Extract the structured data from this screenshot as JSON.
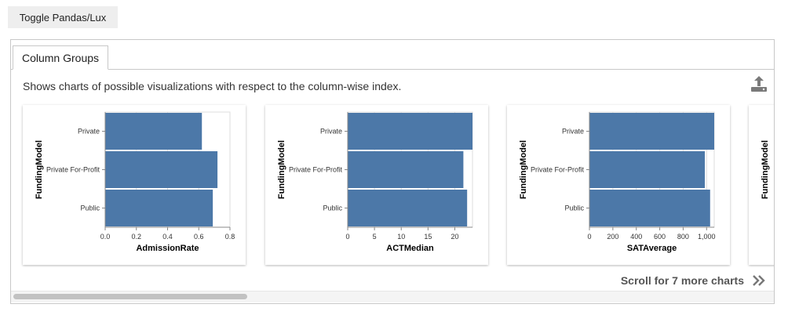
{
  "toggle_label": "Toggle Pandas/Lux",
  "tab_label": "Column Groups",
  "description": "Shows charts of possible visualizations with respect to the column-wise index.",
  "icons": {
    "export": "export-icon",
    "scroll": "double-chevron-right-icon"
  },
  "scroll_label": "Scroll for 7 more charts",
  "colors": {
    "bar": "#4c78a8",
    "axis": "#888888",
    "grid": "#dddddd",
    "card_border": "#d6d6d6"
  },
  "chart_data": [
    {
      "type": "bar",
      "orientation": "horizontal",
      "categories": [
        "Private",
        "Private For-Profit",
        "Public"
      ],
      "values": [
        0.62,
        0.72,
        0.69
      ],
      "xlabel": "AdmissionRate",
      "ylabel": "FundingModel",
      "xlim": [
        0,
        0.8
      ],
      "ticks": [
        0,
        0.2,
        0.4,
        0.6,
        0.8
      ],
      "tick_labels": [
        "0.0",
        "0.2",
        "0.4",
        "0.6",
        "0.8"
      ],
      "grid": true
    },
    {
      "type": "bar",
      "orientation": "horizontal",
      "categories": [
        "Private",
        "Private For-Profit",
        "Public"
      ],
      "values": [
        23.3,
        21.6,
        22.3
      ],
      "xlabel": "ACTMedian",
      "ylabel": "FundingModel",
      "xlim": [
        0,
        23.3
      ],
      "ticks": [
        0,
        5,
        10,
        15,
        20
      ],
      "tick_labels": [
        "0",
        "5",
        "10",
        "15",
        "20"
      ],
      "grid": true
    },
    {
      "type": "bar",
      "orientation": "horizontal",
      "categories": [
        "Private",
        "Private For-Profit",
        "Public"
      ],
      "values": [
        1065,
        985,
        1030
      ],
      "xlabel": "SATAverage",
      "ylabel": "FundingModel",
      "xlim": [
        0,
        1065
      ],
      "ticks": [
        0,
        200,
        400,
        600,
        800,
        1000
      ],
      "tick_labels": [
        "0",
        "200",
        "400",
        "600",
        "800",
        "1,000"
      ],
      "grid": true
    },
    {
      "type": "bar",
      "orientation": "horizontal",
      "categories": [],
      "values": [],
      "xlabel": "",
      "ylabel": "FundingModel",
      "partial": true
    }
  ]
}
